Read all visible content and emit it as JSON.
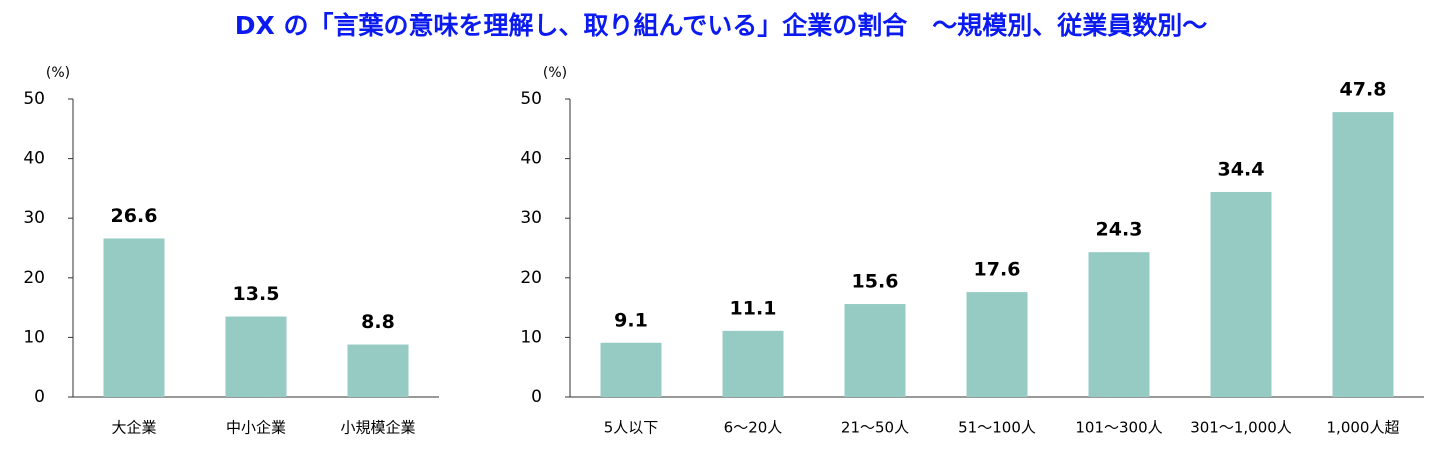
{
  "title": "DX の「言葉の意味を理解し、取り組んでいる」企業の割合　～規模別、従業員数別～",
  "chart_data": [
    {
      "type": "bar",
      "y_label": "(%)",
      "categories": [
        "大企業",
        "中小企業",
        "小規模企業"
      ],
      "values": [
        26.6,
        13.5,
        8.8
      ],
      "color": "#96cbc3",
      "ylim": [
        0,
        50
      ],
      "yticks": [
        0,
        10,
        20,
        30,
        40,
        50
      ]
    },
    {
      "type": "bar",
      "y_label": "(%)",
      "categories": [
        "5人以下",
        "6～20人",
        "21～50人",
        "51～100人",
        "101～300人",
        "301～1,000人",
        "1,000人超"
      ],
      "values": [
        9.1,
        11.1,
        15.6,
        17.6,
        24.3,
        34.4,
        47.8
      ],
      "color": "#96cbc3",
      "ylim": [
        0,
        50
      ],
      "yticks": [
        0,
        10,
        20,
        30,
        40,
        50
      ]
    }
  ]
}
